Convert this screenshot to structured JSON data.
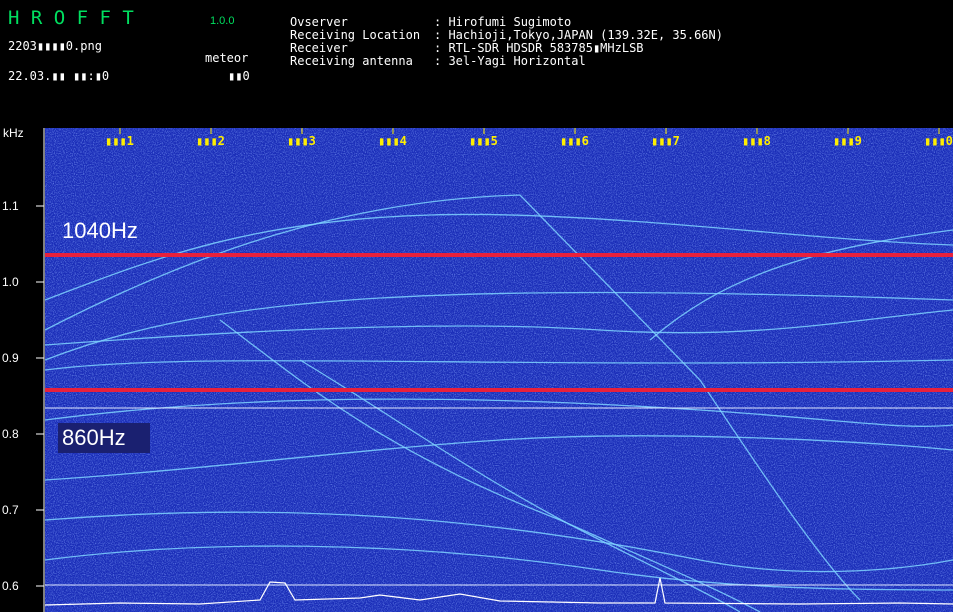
{
  "header": {
    "title": "H R O F F T",
    "version": "1.0.0",
    "file": "2203▮▮▮▮0.png",
    "datetime": "22.03.▮▮ ▮▮:▮0",
    "mode": "meteor",
    "mode_value": "▮▮0",
    "info": [
      {
        "label": "Ovserver",
        "value": ": Hirofumi Sugimoto"
      },
      {
        "label": "Receiving Location",
        "value": ": Hachioji,Tokyo,JAPAN (139.32E, 35.66N)"
      },
      {
        "label": "Receiver",
        "value": ": RTL-SDR HDSDR 583785▮MHzLSB"
      },
      {
        "label": "Receiving antenna",
        "value": ": 3el-Yagi Horizontal"
      }
    ]
  },
  "spectrogram": {
    "unit": "kHz",
    "ticks": [
      "1.1",
      "1.0",
      "0.9",
      "0.8",
      "0.7",
      "0.6"
    ],
    "time_marks": [
      "▮▮▮1",
      "▮▮▮2",
      "▮▮▮3",
      "▮▮▮4",
      "▮▮▮5",
      "▮▮▮6",
      "▮▮▮7",
      "▮▮▮8",
      "▮▮▮9",
      "▮▮▮0"
    ],
    "markers": [
      {
        "label": "1040Hz"
      },
      {
        "label": "860Hz"
      }
    ]
  }
}
